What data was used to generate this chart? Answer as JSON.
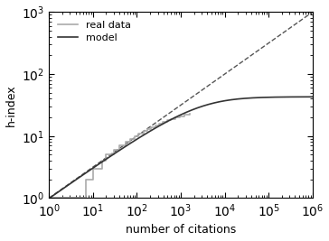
{
  "title": "",
  "xlabel": "number of citations",
  "ylabel": "h-index",
  "xlim": [
    1,
    1000000.0
  ],
  "ylim": [
    1,
    1000.0
  ],
  "N": 59,
  "legend_entries": [
    "real data",
    "model"
  ],
  "real_data_color": "#aaaaaa",
  "model_color": "#333333",
  "dashed_color": "#555555",
  "background_color": "#ffffff",
  "figsize": [
    3.64,
    2.67
  ],
  "dpi": 100,
  "real_data_M": [
    1,
    5,
    7,
    8,
    10,
    13,
    16,
    20,
    30,
    40,
    55,
    70,
    90,
    110,
    140,
    170,
    210,
    260,
    320,
    390,
    480,
    600,
    750,
    950,
    1200,
    1600
  ],
  "real_data_h": [
    1,
    1,
    2,
    2,
    3,
    3,
    4,
    5,
    6,
    7,
    8,
    9,
    10,
    11,
    12,
    13,
    14,
    15,
    16,
    17,
    18,
    19,
    20,
    21,
    22,
    23
  ]
}
